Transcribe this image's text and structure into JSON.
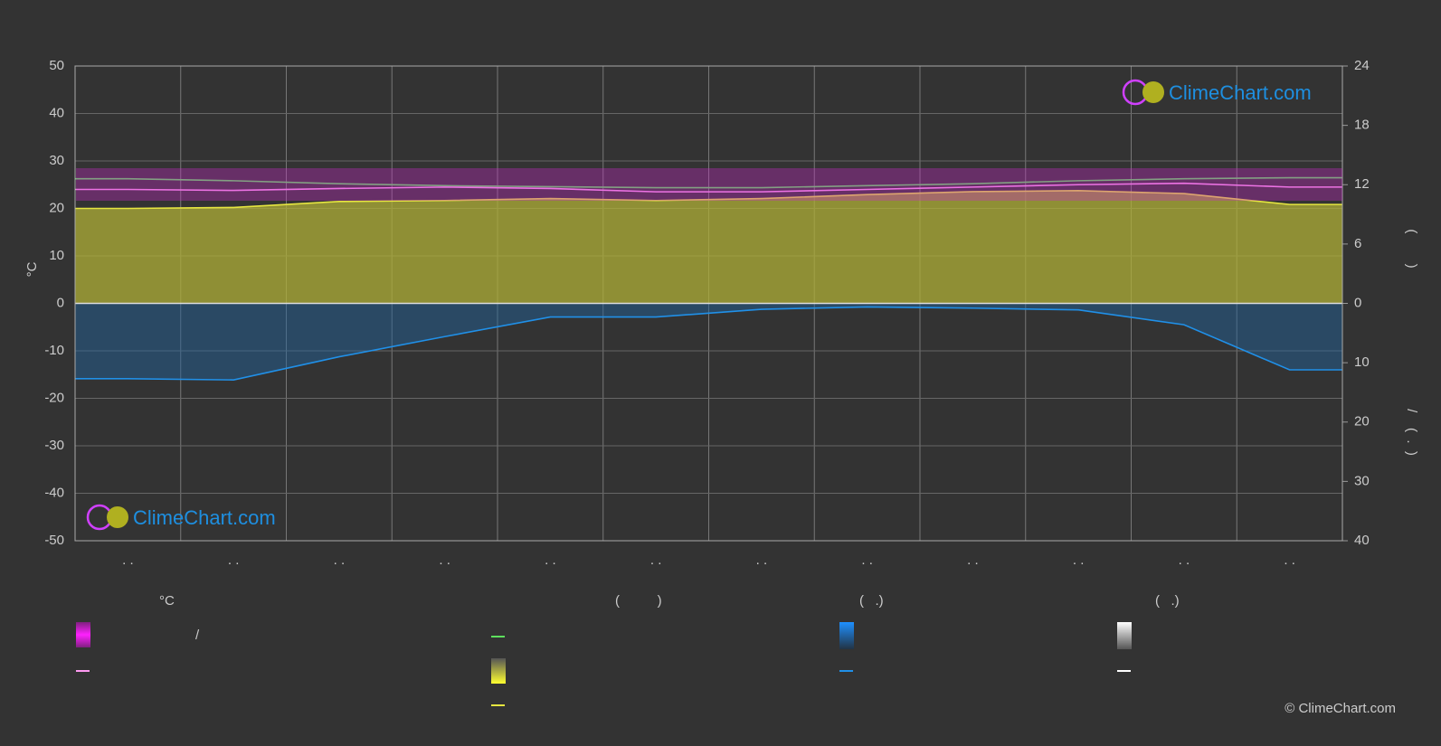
{
  "chart_data": {
    "type": "line",
    "y_label": "°C",
    "y2_label": "(        )",
    "y3_label": "/    (  .  )",
    "categories": [
      ". .",
      ". .",
      ". .",
      ". .",
      ". .",
      ". .",
      ". .",
      ". .",
      ". .",
      ". .",
      ". .",
      ". ."
    ],
    "ylim": [
      -50,
      50
    ],
    "yticks": [
      -50,
      -40,
      -30,
      -20,
      -10,
      0,
      10,
      20,
      30,
      40,
      50
    ],
    "y2lim": [
      0,
      24
    ],
    "y2ticks": [
      0,
      6,
      12,
      18,
      24
    ],
    "y3lim": [
      0,
      40
    ],
    "y3ticks": [
      10,
      20,
      30,
      40
    ],
    "grid": true,
    "series": [
      {
        "color": "#5ee05e",
        "axis": "y2",
        "values": [
          12.6,
          12.4,
          12.1,
          11.9,
          11.8,
          11.7,
          11.7,
          11.9,
          12.1,
          12.4,
          12.6,
          12.7
        ]
      },
      {
        "color": "#ff9af2",
        "axis": "y",
        "values": [
          24,
          23.8,
          24.2,
          24.5,
          24.2,
          23.5,
          23.5,
          24,
          24.5,
          25,
          25.3,
          24.5
        ]
      },
      {
        "color": "#e6e640",
        "axis": "y2",
        "fill": "rgba(175,175,55,0.75)",
        "values": [
          9.6,
          9.7,
          10.3,
          10.4,
          10.6,
          10.4,
          10.6,
          11.0,
          11.3,
          11.4,
          11.1,
          10.0
        ]
      },
      {
        "color": "#2090e8",
        "axis": "y3",
        "fill": "rgba(30,100,160,0.45)",
        "values": [
          12.7,
          12.9,
          9.0,
          5.6,
          2.3,
          2.3,
          1.0,
          0.6,
          0.8,
          1.1,
          3.6,
          11.2
        ]
      }
    ],
    "legend": {
      "headings": [
        "°C",
        "(          )",
        "(   .)",
        "(   .)"
      ],
      "slash": "/"
    },
    "watermark": "ClimeChart.com",
    "copyright": "© ClimeChart.com"
  }
}
